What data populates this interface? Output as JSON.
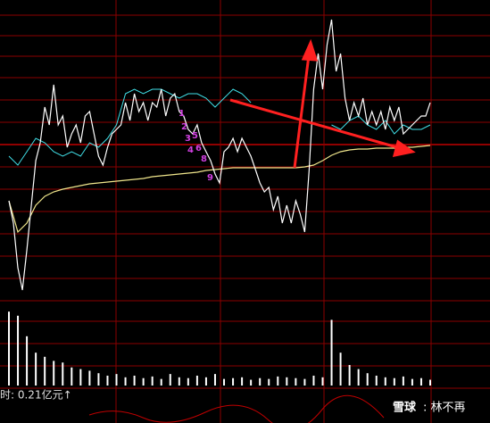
{
  "chart_data": {
    "type": "line",
    "price": {
      "color": "#ffffff",
      "ylim": [
        0,
        337
      ],
      "values": [
        112,
        87,
        37,
        12,
        57,
        107,
        157,
        177,
        217,
        197,
        242,
        197,
        207,
        172,
        187,
        197,
        177,
        207,
        212,
        187,
        162,
        152,
        172,
        187,
        192,
        197,
        222,
        202,
        232,
        212,
        222,
        202,
        222,
        217,
        237,
        207,
        227,
        232,
        212,
        207,
        192,
        187,
        197,
        177,
        167,
        157,
        142,
        132,
        167,
        172,
        182,
        167,
        182,
        172,
        162,
        147,
        132,
        122,
        127,
        102,
        117,
        87,
        107,
        87,
        112,
        97,
        77,
        147,
        237,
        277,
        237,
        287,
        315,
        257,
        277,
        227,
        202,
        222,
        207,
        227,
        197,
        212,
        197,
        212,
        192,
        217,
        202,
        217,
        187,
        192,
        197,
        202,
        207,
        207,
        222
      ]
    },
    "reference": {
      "color": "#40e0e8",
      "ylim": [
        0,
        337
      ],
      "values": [
        162,
        152,
        167,
        182,
        177,
        167,
        162,
        167,
        162,
        177,
        172,
        182,
        197,
        232,
        237,
        232,
        237,
        237,
        232,
        227,
        232,
        232,
        227,
        217,
        227,
        237,
        232,
        222,
        null,
        null,
        null,
        null,
        null,
        null,
        null,
        null,
        197,
        192,
        202,
        207,
        197,
        192,
        202,
        187,
        197,
        192,
        192,
        197
      ]
    },
    "average": {
      "color": "#f0e68c",
      "ylim": [
        0,
        337
      ],
      "values": [
        112,
        77,
        87,
        107,
        117,
        122,
        125,
        127,
        129,
        131,
        132,
        133,
        134,
        135,
        136,
        137,
        139,
        140,
        141,
        142,
        143,
        144,
        146,
        147,
        148,
        149,
        149,
        149,
        149,
        149,
        149,
        149,
        149,
        150,
        152,
        157,
        163,
        167,
        169,
        170,
        170,
        171,
        171,
        171,
        172,
        172,
        173,
        174
      ]
    },
    "volume": {
      "color": "#ffffff",
      "ylim": [
        0,
        100
      ],
      "values": [
        90,
        85,
        60,
        40,
        35,
        30,
        28,
        22,
        20,
        18,
        15,
        12,
        14,
        10,
        12,
        9,
        11,
        8,
        14,
        10,
        9,
        12,
        10,
        14,
        8,
        9,
        10,
        7,
        9,
        8,
        11,
        10,
        9,
        8,
        12,
        10,
        80,
        40,
        25,
        20,
        15,
        12,
        10,
        9,
        11,
        8,
        9,
        7
      ]
    },
    "annotations": [
      "1",
      "2",
      "3",
      "4",
      "5",
      "6",
      "8",
      "9"
    ],
    "footer": "时: 0.21亿元↑"
  },
  "watermark": {
    "logo": "雪球",
    "author": ": 林不再"
  }
}
